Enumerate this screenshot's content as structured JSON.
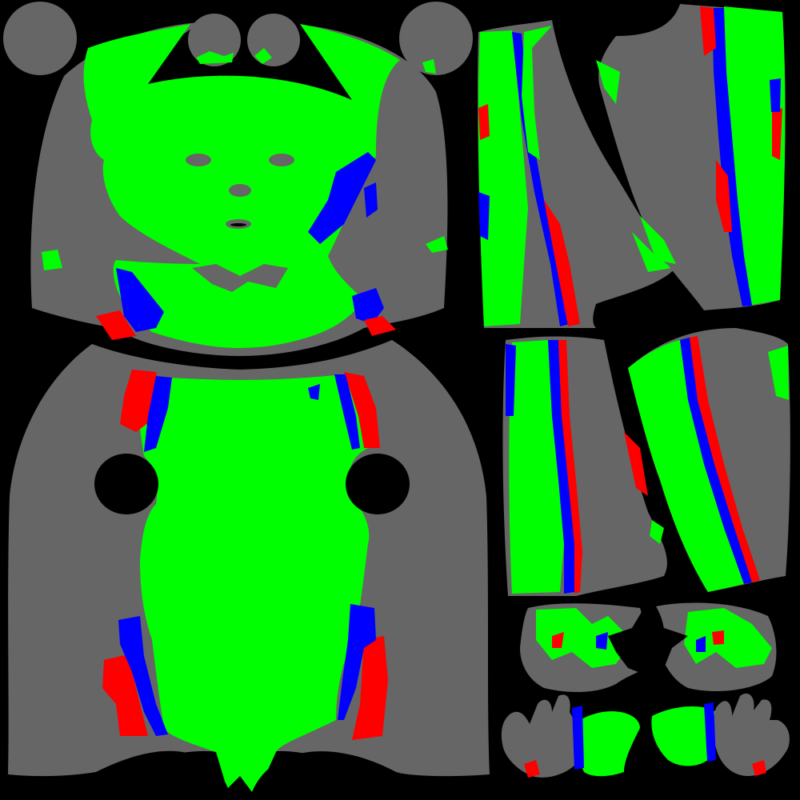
{
  "texture": {
    "kind": "uv-segmentation-map",
    "colors": {
      "background": "#000000",
      "base": "#666666",
      "region_green": "#00ff00",
      "region_blue": "#0000ff",
      "region_red": "#ff0000"
    },
    "islands": [
      "head-island",
      "torso-island",
      "upper-leg-left-island",
      "upper-leg-right-island",
      "lower-leg-left-island",
      "lower-leg-right-island",
      "feet-island",
      "hands-island",
      "ear-disc-left",
      "ear-disc-right",
      "eye-disc-left",
      "eye-disc-right"
    ]
  }
}
